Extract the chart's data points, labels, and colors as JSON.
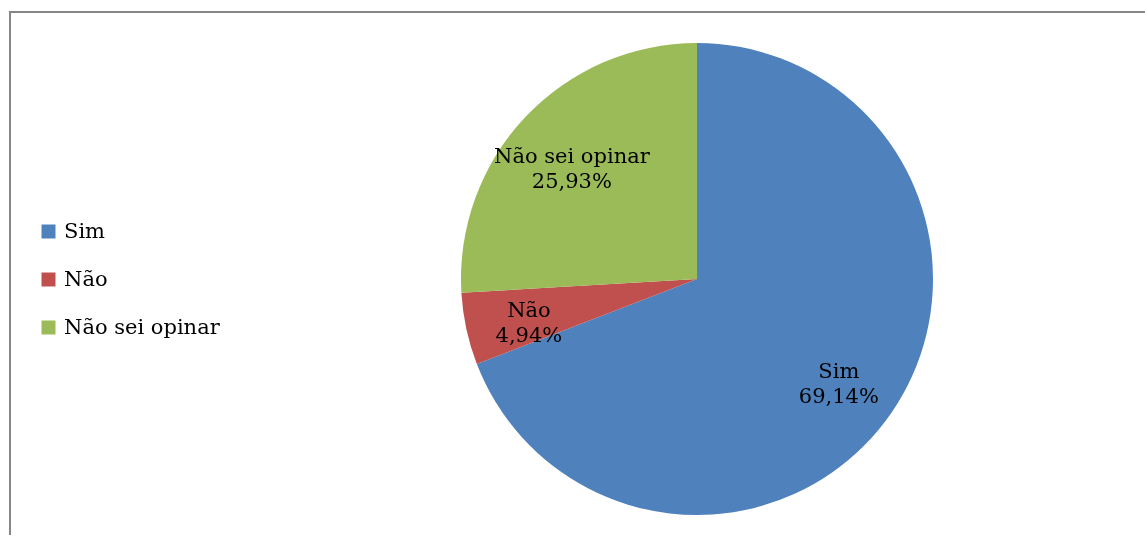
{
  "chart_data": {
    "type": "pie",
    "categories": [
      "Sim",
      "Não",
      "Não sei opinar"
    ],
    "values": [
      69.14,
      4.94,
      25.93
    ],
    "colors": [
      "#4f81bd",
      "#c0504d",
      "#9bbb59"
    ],
    "value_labels": [
      "69,14%",
      "4,94%",
      "25,93%"
    ],
    "legend": "left"
  }
}
